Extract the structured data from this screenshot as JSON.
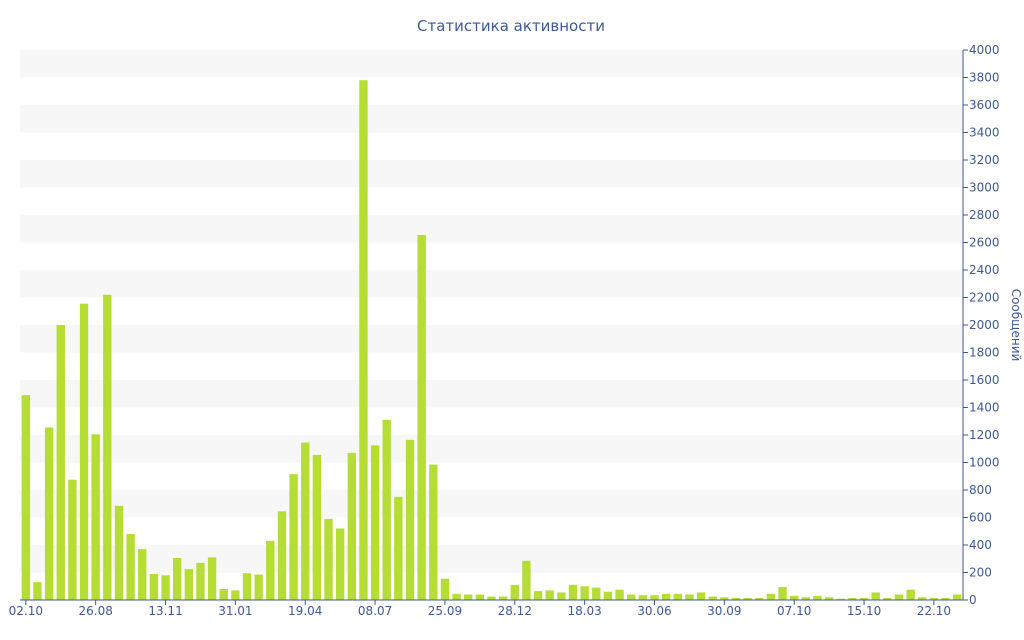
{
  "chart_data": {
    "type": "bar",
    "title": "Статистика активности",
    "ylabel": "Сообщений",
    "xlabel": "",
    "y_axis_position": "right",
    "ylim": [
      0,
      4000
    ],
    "y_ticks": [
      0,
      200,
      400,
      600,
      800,
      1000,
      1200,
      1400,
      1600,
      1800,
      2000,
      2200,
      2400,
      2600,
      2800,
      3000,
      3200,
      3400,
      3600,
      3800,
      4000
    ],
    "grid": "alternating horizontal bands",
    "x_tick_labels": [
      {
        "label": "02.10",
        "index": 0
      },
      {
        "label": "26.08",
        "index": 6
      },
      {
        "label": "13.11",
        "index": 12
      },
      {
        "label": "31.01",
        "index": 18
      },
      {
        "label": "19.04",
        "index": 24
      },
      {
        "label": "08.07",
        "index": 30
      },
      {
        "label": "25.09",
        "index": 36
      },
      {
        "label": "28.12",
        "index": 42
      },
      {
        "label": "18.03",
        "index": 48
      },
      {
        "label": "30.06",
        "index": 54
      },
      {
        "label": "30.09",
        "index": 60
      },
      {
        "label": "07.10",
        "index": 66
      },
      {
        "label": "15.10",
        "index": 72
      },
      {
        "label": "22.10",
        "index": 78
      }
    ],
    "values": [
      1490,
      130,
      1255,
      2000,
      875,
      2155,
      1205,
      2220,
      685,
      480,
      370,
      190,
      180,
      305,
      225,
      270,
      310,
      80,
      70,
      195,
      185,
      430,
      645,
      915,
      1145,
      1055,
      590,
      520,
      1070,
      3780,
      1125,
      1310,
      750,
      1165,
      2655,
      985,
      155,
      45,
      40,
      40,
      25,
      25,
      110,
      285,
      65,
      70,
      55,
      110,
      100,
      90,
      60,
      75,
      40,
      35,
      35,
      45,
      45,
      40,
      55,
      25,
      20,
      15,
      15,
      15,
      45,
      95,
      30,
      20,
      30,
      20,
      10,
      15,
      15,
      55,
      15,
      40,
      75,
      20,
      15,
      15,
      40
    ],
    "colors": {
      "bar": "#b5dd34",
      "band": "#f7f7f7",
      "axis": "#3e5a95",
      "text": "#3e5a95"
    }
  }
}
